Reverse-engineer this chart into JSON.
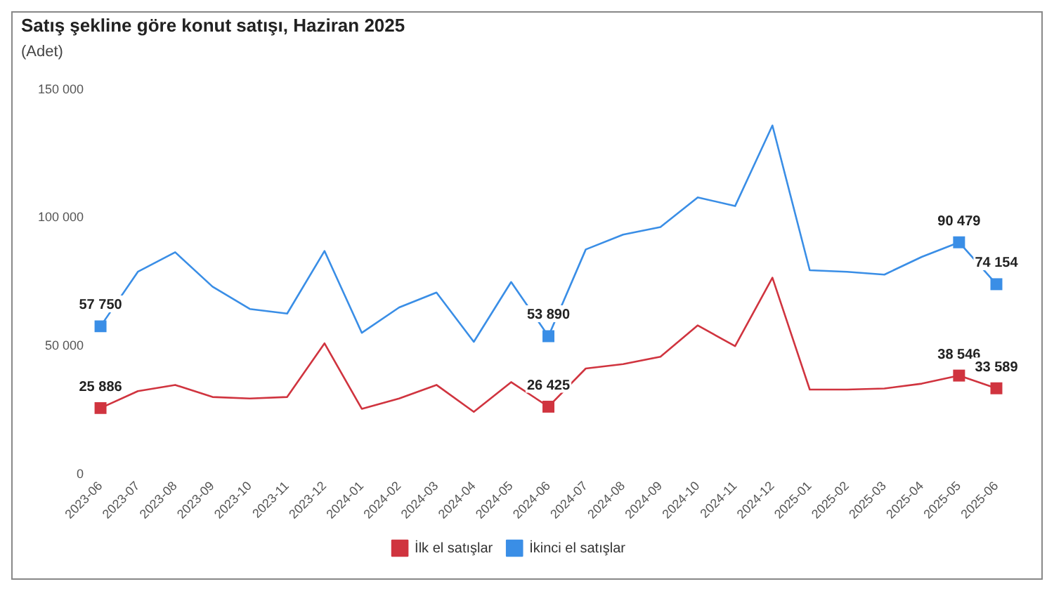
{
  "chart_data": {
    "type": "line",
    "title": "Satış şekline göre konut satışı, Haziran 2025",
    "subtitle": "(Adet)",
    "categories": [
      "2023-06",
      "2023-07",
      "2023-08",
      "2023-09",
      "2023-10",
      "2023-11",
      "2023-12",
      "2024-01",
      "2024-02",
      "2024-03",
      "2024-04",
      "2024-05",
      "2024-06",
      "2024-07",
      "2024-08",
      "2024-09",
      "2024-10",
      "2024-11",
      "2024-12",
      "2025-01",
      "2025-02",
      "2025-03",
      "2025-04",
      "2025-05",
      "2025-06"
    ],
    "series": [
      {
        "name": "İlk el satışlar",
        "color": "#d0343f",
        "values": [
          25886,
          32500,
          34900,
          30200,
          29600,
          30200,
          51100,
          25600,
          29600,
          34900,
          24400,
          36000,
          26425,
          41300,
          43000,
          45900,
          58100,
          50000,
          76700,
          33100,
          33100,
          33500,
          35400,
          38546,
          33589
        ],
        "value_labels": [
          "25 886",
          null,
          null,
          null,
          null,
          null,
          null,
          null,
          null,
          null,
          null,
          null,
          "26 425",
          null,
          null,
          null,
          null,
          null,
          null,
          null,
          null,
          null,
          null,
          "38 546",
          "33 589"
        ]
      },
      {
        "name": "İkinci el satışlar",
        "color": "#3a8ee6",
        "values": [
          57750,
          79000,
          86600,
          73200,
          64500,
          62700,
          87100,
          55200,
          65100,
          70900,
          51700,
          75000,
          53890,
          87700,
          93500,
          96400,
          108000,
          104600,
          136000,
          79600,
          79000,
          77900,
          84800,
          90479,
          74154
        ],
        "value_labels": [
          "57 750",
          null,
          null,
          null,
          null,
          null,
          null,
          null,
          null,
          null,
          null,
          null,
          "53 890",
          null,
          null,
          null,
          null,
          null,
          null,
          null,
          null,
          null,
          null,
          "90 479",
          "74 154"
        ]
      }
    ],
    "ylim": [
      0,
      150000
    ],
    "yticks": [
      {
        "value": 0,
        "label": "0"
      },
      {
        "value": 50000,
        "label": "50 000"
      },
      {
        "value": 100000,
        "label": "100 000"
      },
      {
        "value": 150000,
        "label": "150 000"
      }
    ],
    "grid": false,
    "legend": "bottom",
    "line_style": "solid"
  }
}
